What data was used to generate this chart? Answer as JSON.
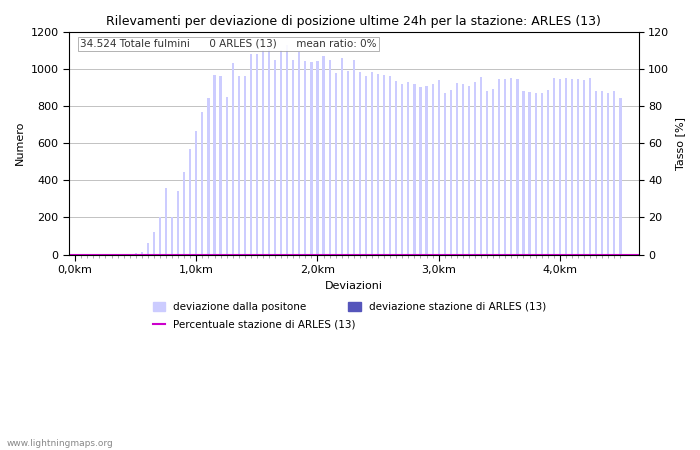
{
  "title": "Rilevamenti per deviazione di posizione ultime 24h per la stazione: ARLES (13)",
  "xlabel": "Deviazioni",
  "ylabel_left": "Numero",
  "ylabel_right": "Tasso [%]",
  "annotation": "34.524 Totale fulmini      0 ARLES (13)      mean ratio: 0%",
  "watermark": "www.lightningmaps.org",
  "bar_color_light": "#ccccff",
  "bar_color_dark": "#5555bb",
  "line_color": "#cc00cc",
  "bar_width": 0.018,
  "xlim": [
    -0.05,
    4.65
  ],
  "ylim_left": [
    0,
    1200
  ],
  "ylim_right": [
    0,
    120
  ],
  "xtick_positions": [
    0.0,
    1.0,
    2.0,
    3.0,
    4.0
  ],
  "xtick_labels": [
    "0,0km",
    "1,0km",
    "2,0km",
    "3,0km",
    "4,0km"
  ],
  "ytick_left": [
    0,
    200,
    400,
    600,
    800,
    1000,
    1200
  ],
  "ytick_right": [
    0,
    20,
    40,
    60,
    80,
    100,
    120
  ],
  "bars_x": [
    0.05,
    0.1,
    0.15,
    0.2,
    0.25,
    0.3,
    0.35,
    0.4,
    0.45,
    0.5,
    0.55,
    0.6,
    0.65,
    0.7,
    0.75,
    0.8,
    0.85,
    0.9,
    0.95,
    1.0,
    1.05,
    1.1,
    1.15,
    1.2,
    1.25,
    1.3,
    1.35,
    1.4,
    1.45,
    1.5,
    1.55,
    1.6,
    1.65,
    1.7,
    1.75,
    1.8,
    1.85,
    1.9,
    1.95,
    2.0,
    2.05,
    2.1,
    2.15,
    2.2,
    2.25,
    2.3,
    2.35,
    2.4,
    2.45,
    2.5,
    2.55,
    2.6,
    2.65,
    2.7,
    2.75,
    2.8,
    2.85,
    2.9,
    2.95,
    3.0,
    3.05,
    3.1,
    3.15,
    3.2,
    3.25,
    3.3,
    3.35,
    3.4,
    3.45,
    3.5,
    3.55,
    3.6,
    3.65,
    3.7,
    3.75,
    3.8,
    3.85,
    3.9,
    3.95,
    4.0,
    4.05,
    4.1,
    4.15,
    4.2,
    4.25,
    4.3,
    4.35,
    4.4,
    4.45,
    4.5
  ],
  "bars_h": [
    2,
    0,
    0,
    0,
    0,
    0,
    1,
    0,
    5,
    10,
    15,
    60,
    120,
    205,
    360,
    200,
    340,
    445,
    570,
    665,
    770,
    845,
    970,
    960,
    850,
    1030,
    965,
    965,
    1080,
    1080,
    1100,
    1120,
    1050,
    1100,
    1130,
    1050,
    1090,
    1045,
    1040,
    1045,
    1070,
    1050,
    980,
    1060,
    990,
    1050,
    985,
    960,
    985,
    975,
    970,
    960,
    935,
    920,
    930,
    920,
    905,
    910,
    920,
    940,
    870,
    885,
    925,
    920,
    910,
    930,
    955,
    880,
    890,
    945,
    945,
    950,
    945,
    880,
    875,
    870,
    870,
    885,
    950,
    945,
    950,
    945,
    945,
    940,
    950,
    880,
    880,
    870,
    880,
    845
  ],
  "dark_bar_heights": [
    5,
    5,
    5,
    5,
    5,
    5,
    5,
    5,
    5,
    5,
    5,
    5,
    5,
    5,
    5,
    5,
    5,
    5,
    5,
    5,
    5,
    5,
    5,
    5,
    5,
    5,
    5,
    5,
    5,
    5,
    5,
    5,
    5,
    5,
    5,
    5,
    5,
    5,
    5,
    5,
    5,
    5,
    5,
    5,
    5,
    5,
    5,
    5,
    5,
    5,
    5,
    5,
    5,
    5,
    5,
    5,
    5,
    5,
    5,
    5,
    5,
    5,
    5,
    5,
    5,
    5,
    5,
    5,
    5,
    5,
    5,
    5,
    5,
    5,
    5,
    5,
    5,
    5,
    5,
    5,
    5,
    5,
    5,
    5,
    5,
    5,
    5,
    5,
    5,
    5
  ],
  "grid_color": "#aaaaaa",
  "bg_color": "#ffffff",
  "legend_items": [
    {
      "label": "deviazione dalla positone",
      "color": "#ccccff",
      "type": "bar"
    },
    {
      "label": "deviazione stazione di ARLES (13)",
      "color": "#5555bb",
      "type": "bar"
    },
    {
      "label": "Percentuale stazione di ARLES (13)",
      "color": "#cc00cc",
      "type": "line"
    }
  ]
}
